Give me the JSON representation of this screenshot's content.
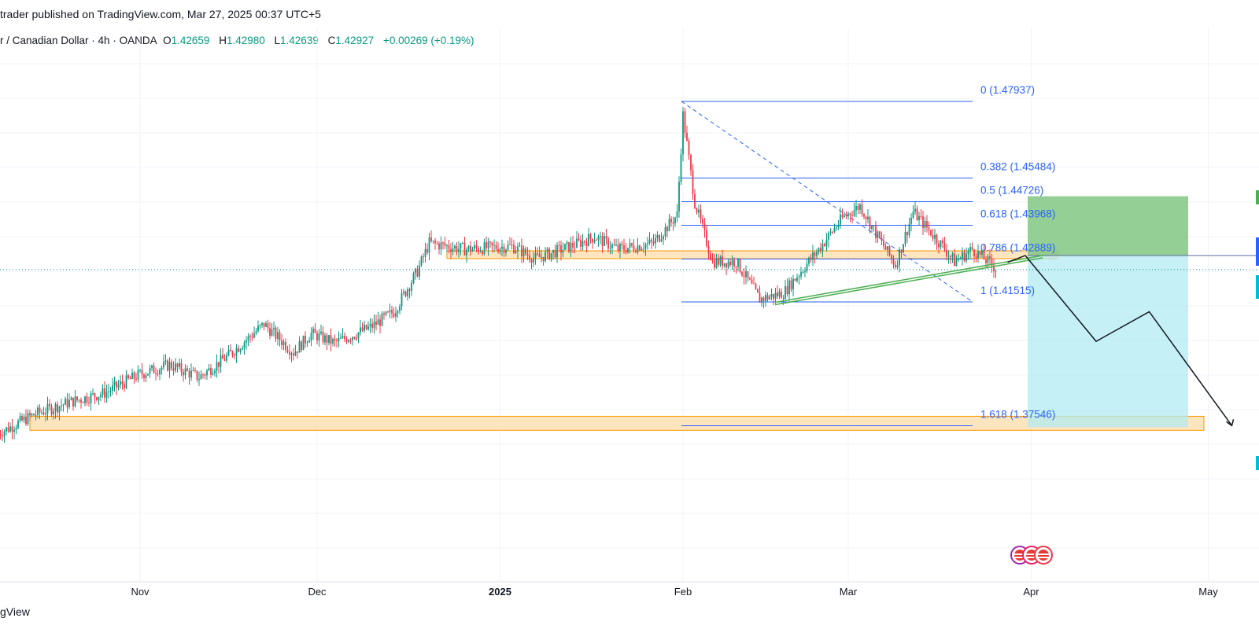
{
  "header": {
    "publisher_text": "trader published on TradingView.com, Mar 27, 2025 00:37 UTC+5"
  },
  "legend": {
    "symbol": "r / Canadian Dollar · 4h · OANDA",
    "open_key": "O",
    "open": "1.42659",
    "high_key": "H",
    "high": "1.42980",
    "low_key": "L",
    "low": "1.42639",
    "close_key": "C",
    "close": "1.42927",
    "change": "+0.00269 (+0.19%)"
  },
  "footer": {
    "brand": "gView"
  },
  "colors": {
    "up": "#089981",
    "down": "#f23645",
    "fib": "#2962ff",
    "zone_fill": "#ffe0b2",
    "zone_stroke": "#ff9800",
    "profit": "#81c784",
    "loss": "#b2ebf2",
    "trend": "#4caf50"
  },
  "chart_data": {
    "type": "candlestick",
    "x_ticks": [
      "Nov",
      "Dec",
      "2025",
      "Feb",
      "Mar",
      "Apr",
      "May"
    ],
    "series_path": [
      [
        "2024-10-08",
        1.373
      ],
      [
        "2024-10-14",
        1.379
      ],
      [
        "2024-10-20",
        1.383
      ],
      [
        "2024-10-26",
        1.386
      ],
      [
        "2024-11-01",
        1.392
      ],
      [
        "2024-11-06",
        1.395
      ],
      [
        "2024-11-11",
        1.391
      ],
      [
        "2024-11-16",
        1.398
      ],
      [
        "2024-11-22",
        1.408
      ],
      [
        "2024-11-27",
        1.399
      ],
      [
        "2024-11-30",
        1.405
      ],
      [
        "2024-12-04",
        1.402
      ],
      [
        "2024-12-10",
        1.407
      ],
      [
        "2024-12-14",
        1.412
      ],
      [
        "2024-12-18",
        1.425
      ],
      [
        "2024-12-20",
        1.434
      ],
      [
        "2024-12-26",
        1.432
      ],
      [
        "2025-01-03",
        1.433
      ],
      [
        "2025-01-07",
        1.429
      ],
      [
        "2025-01-13",
        1.433
      ],
      [
        "2025-01-17",
        1.436
      ],
      [
        "2025-01-21",
        1.432
      ],
      [
        "2025-01-27",
        1.434
      ],
      [
        "2025-01-31",
        1.443
      ],
      [
        "2025-02-01",
        1.475
      ],
      [
        "2025-02-03",
        1.447
      ],
      [
        "2025-02-06",
        1.428
      ],
      [
        "2025-02-10",
        1.428
      ],
      [
        "2025-02-14",
        1.416
      ],
      [
        "2025-02-18",
        1.418
      ],
      [
        "2025-02-24",
        1.432
      ],
      [
        "2025-02-28",
        1.442
      ],
      [
        "2025-03-03",
        1.446
      ],
      [
        "2025-03-06",
        1.436
      ],
      [
        "2025-03-09",
        1.427
      ],
      [
        "2025-03-12",
        1.444
      ],
      [
        "2025-03-17",
        1.433
      ],
      [
        "2025-03-19",
        1.428
      ],
      [
        "2025-03-22",
        1.432
      ],
      [
        "2025-03-26",
        1.426
      ]
    ],
    "fib_levels": [
      {
        "label": "0 (1.47937)",
        "value": 1.47937
      },
      {
        "label": "0.382 (1.45484)",
        "value": 1.45484
      },
      {
        "label": "0.5 (1.44726)",
        "value": 1.44726
      },
      {
        "label": "0.618 (1.43968)",
        "value": 1.43968
      },
      {
        "label": "0.786 (1.42889)",
        "value": 1.42889
      },
      {
        "label": "1 (1.41515)",
        "value": 1.41515
      },
      {
        "label": "1.618 (1.37546)",
        "value": 1.37546
      }
    ],
    "support_zones": [
      {
        "low": 1.4295,
        "high": 1.431
      },
      {
        "low": 1.374,
        "high": 1.3785
      }
    ],
    "position": {
      "entry": 1.43,
      "target": 1.375,
      "stop": 1.449
    },
    "projection": [
      [
        "2025-03-28",
        1.4278
      ],
      [
        "2025-03-31",
        1.43
      ],
      [
        "2025-04-12",
        1.4025
      ],
      [
        "2025-04-21",
        1.412
      ],
      [
        "2025-05-05",
        1.3755
      ]
    ],
    "current_price": 1.42927,
    "grid": true,
    "legend_position": "top-left"
  }
}
